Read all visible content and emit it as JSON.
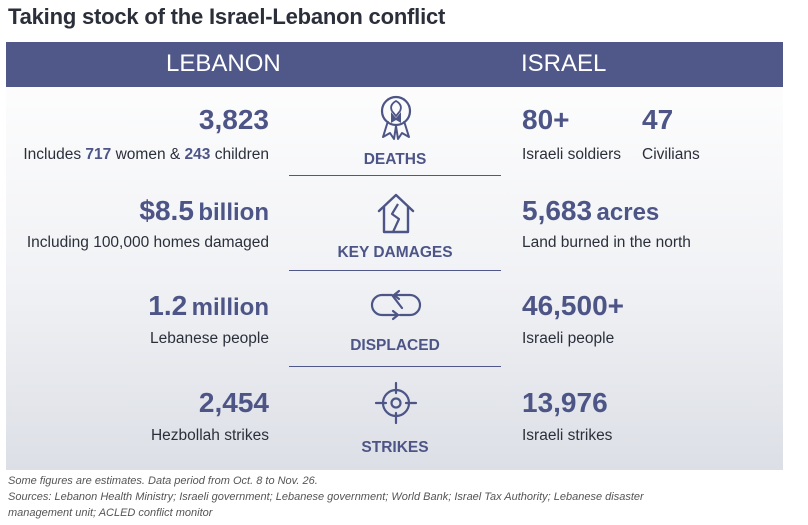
{
  "title": "Taking stock of the Israel-Lebanon conflict",
  "colors": {
    "header_bg": "#4f5888",
    "accent": "#4d5587",
    "text": "#2b2f3a"
  },
  "chart_data": {
    "type": "table",
    "columns": [
      "LEBANON",
      "ISRAEL"
    ],
    "rows": [
      {
        "category": "DEATHS",
        "icon": "ribbon-icon",
        "lebanon": {
          "value": "3,823",
          "desc_prefix": "Includes ",
          "women": "717",
          "desc_mid": " women & ",
          "children": "243",
          "desc_suffix": " children"
        },
        "israel": [
          {
            "value": "80+",
            "desc": "Israeli soldiers"
          },
          {
            "value": "47",
            "desc": "Civilians"
          }
        ]
      },
      {
        "category": "KEY DAMAGES",
        "icon": "broken-house-icon",
        "lebanon": {
          "value": "$8.5",
          "unit": "billion",
          "desc": "Including 100,000 homes damaged"
        },
        "israel": {
          "value": "5,683",
          "unit": "acres",
          "desc": "Land burned in the north"
        }
      },
      {
        "category": "DISPLACED",
        "icon": "displacement-arrows-icon",
        "lebanon": {
          "value": "1.2",
          "unit": "million",
          "desc": "Lebanese people"
        },
        "israel": {
          "value": "46,500+",
          "desc": "Israeli people"
        }
      },
      {
        "category": "STRIKES",
        "icon": "crosshair-icon",
        "lebanon": {
          "value": "2,454",
          "desc": "Hezbollah strikes"
        },
        "israel": {
          "value": "13,976",
          "desc": "Israeli strikes"
        }
      }
    ]
  },
  "footnotes": {
    "note": "Some figures are estimates. Data period from Oct. 8 to Nov. 26.",
    "sources_line1": "Sources: Lebanon Health Ministry; Israeli government; Lebanese government; World Bank; Israel Tax Authority; Lebanese disaster",
    "sources_line2": "management unit; ACLED conflict monitor"
  }
}
